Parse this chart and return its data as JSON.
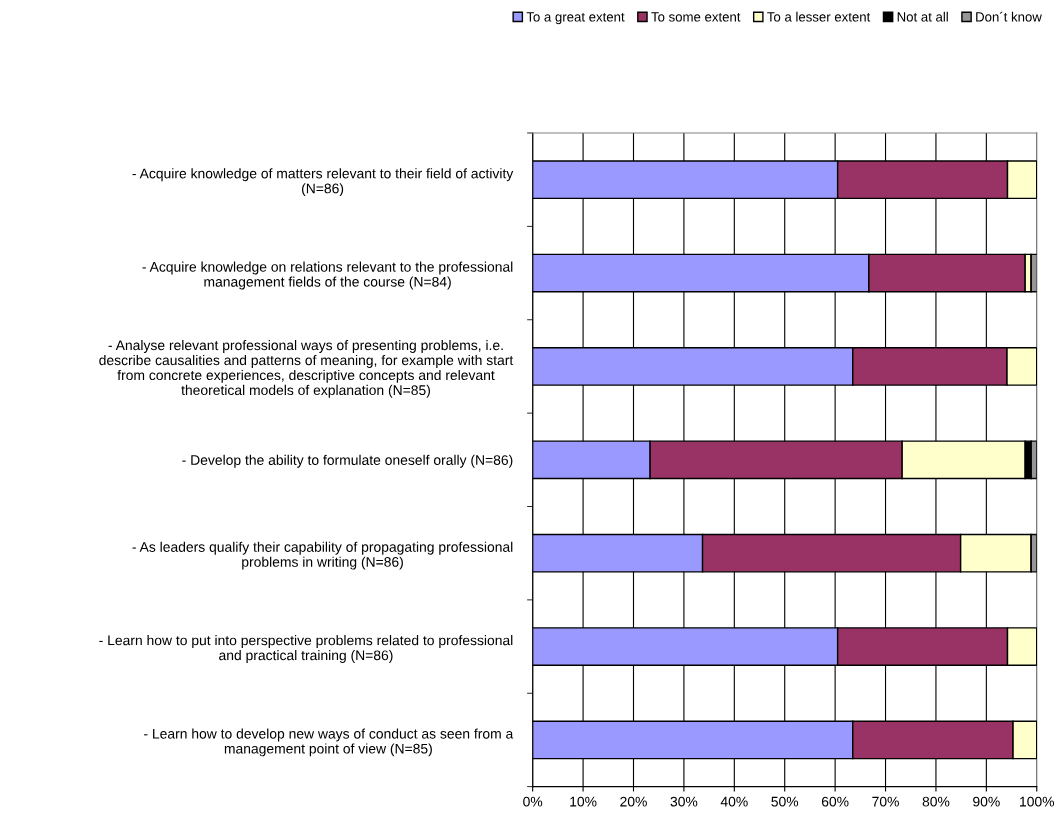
{
  "chart_data": {
    "type": "bar",
    "orientation": "horizontal",
    "stacked": true,
    "categories": [
      "- Acquire knowledge of matters relevant to their field of activity\n(N=86)",
      "- Acquire knowledge on relations relevant to the professional\nmanagement fields of the course (N=84)",
      "- Analyse relevant professional ways of presenting problems, i.e.\ndescribe causalities and patterns of meaning, for example with start\nfrom concrete experiences, descriptive concepts and relevant\ntheoretical models of explanation (N=85)",
      "- Develop the ability to formulate oneself orally (N=86)",
      "- As leaders qualify their capability of propagating professional\nproblems in writing (N=86)",
      "- Learn how to put into perspective problems related to professional\nand practical training (N=86)",
      "- Learn how to develop new ways of conduct as seen from a\nmanagement point of view (N=85)"
    ],
    "series": [
      {
        "name": "To a great extent",
        "color": "#9999ff",
        "values": [
          60.5,
          66.7,
          63.5,
          23.3,
          33.7,
          60.5,
          63.5
        ]
      },
      {
        "name": "To some extent",
        "color": "#993366",
        "values": [
          33.7,
          31.0,
          30.6,
          50.0,
          51.2,
          33.7,
          31.8
        ]
      },
      {
        "name": "To a lesser extent",
        "color": "#ffffcc",
        "values": [
          5.8,
          1.2,
          5.9,
          24.4,
          14.0,
          5.8,
          4.7
        ]
      },
      {
        "name": "Not at all",
        "color": "#000000",
        "values": [
          0,
          0,
          0,
          1.2,
          0,
          0,
          0
        ]
      },
      {
        "name": "Don´t know",
        "color": "#969696",
        "values": [
          0,
          1.2,
          0,
          1.1,
          1.1,
          0,
          0
        ]
      }
    ],
    "xlim": [
      0,
      100
    ],
    "xticks": [
      {
        "value": 0,
        "label": "0%"
      },
      {
        "value": 10,
        "label": "10%"
      },
      {
        "value": 20,
        "label": "20%"
      },
      {
        "value": 30,
        "label": "30%"
      },
      {
        "value": 40,
        "label": "40%"
      },
      {
        "value": 50,
        "label": "50%"
      },
      {
        "value": 60,
        "label": "60%"
      },
      {
        "value": 70,
        "label": "70%"
      },
      {
        "value": 80,
        "label": "80%"
      },
      {
        "value": 90,
        "label": "90%"
      },
      {
        "value": 100,
        "label": "100%"
      }
    ],
    "grid": "x",
    "legend": "top"
  }
}
